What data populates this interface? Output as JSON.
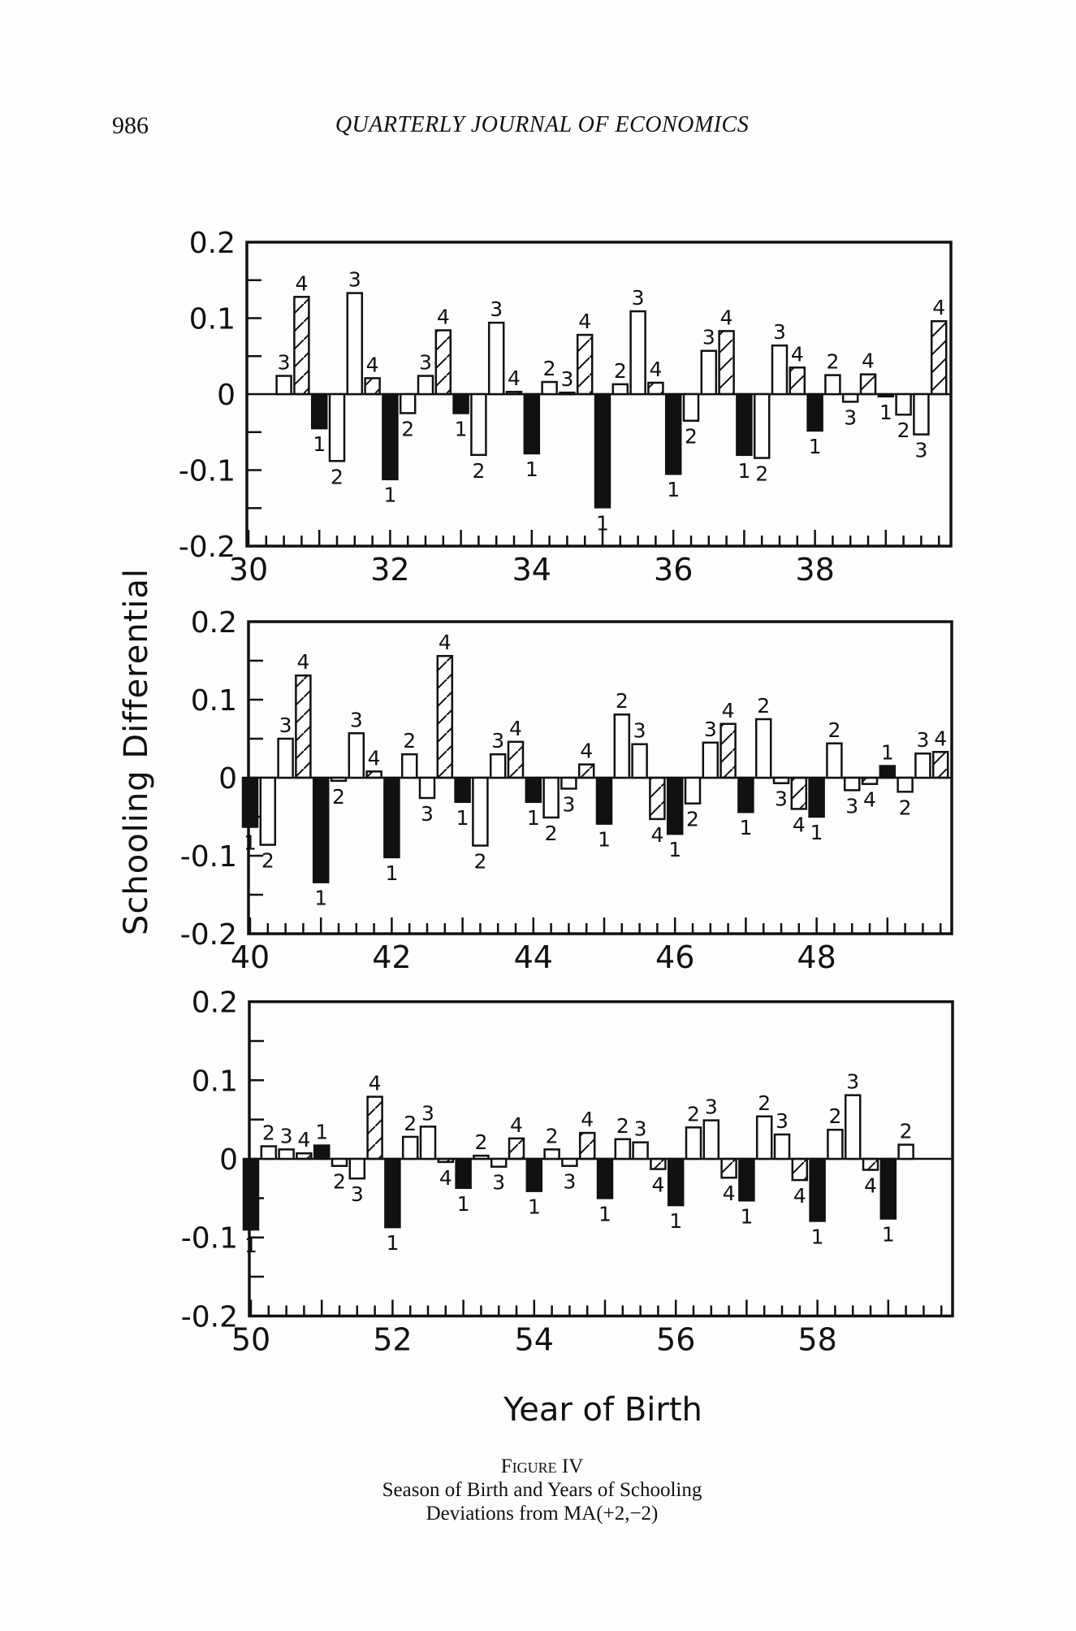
{
  "header": {
    "page_number": "986",
    "journal_title": "QUARTERLY JOURNAL OF ECONOMICS"
  },
  "caption": {
    "figure_label": "Figure IV",
    "line1": "Season of Birth and Years of Schooling",
    "line2": "Deviations from MA(+2,−2)"
  },
  "colors": {
    "ink": "#111111",
    "paper": "#fdfdfb"
  },
  "chart_data": [
    {
      "type": "bar",
      "title": "",
      "xlabel": "Year of Birth",
      "ylabel": "Schooling Differential",
      "ylim": [
        -0.2,
        0.2
      ],
      "xlim": [
        30,
        40
      ],
      "ytick_labels": [
        "0.2",
        "0.1",
        "0",
        "-0.1",
        "-0.2"
      ],
      "ytick_values": [
        0.2,
        0.1,
        0,
        -0.1,
        -0.2
      ],
      "xtick_labels": [
        "30",
        "32",
        "34",
        "36",
        "38"
      ],
      "xtick_values": [
        30,
        32,
        34,
        36,
        38
      ],
      "quarter_labels": [
        "1",
        "2",
        "3",
        "4"
      ],
      "years": [
        30,
        31,
        32,
        33,
        34,
        35,
        36,
        37,
        38,
        39
      ],
      "series": [
        {
          "name": "Quarter 1",
          "style": "solid",
          "values": [
            null,
            -0.045,
            -0.112,
            -0.025,
            -0.078,
            -0.149,
            -0.105,
            -0.08,
            -0.048,
            -0.003
          ]
        },
        {
          "name": "Quarter 2",
          "style": "open",
          "values": [
            null,
            -0.088,
            -0.025,
            -0.08,
            0.016,
            0.013,
            -0.035,
            -0.084,
            0.025,
            -0.027
          ]
        },
        {
          "name": "Quarter 3",
          "style": "open",
          "values": [
            0.024,
            0.133,
            0.024,
            0.094,
            0.002,
            0.109,
            0.057,
            0.064,
            -0.01,
            -0.053
          ]
        },
        {
          "name": "Quarter 4",
          "style": "hatched",
          "values": [
            0.128,
            0.021,
            0.084,
            0.003,
            0.078,
            0.015,
            0.083,
            0.035,
            0.026,
            0.096
          ]
        }
      ]
    },
    {
      "type": "bar",
      "title": "",
      "xlabel": "Year of Birth",
      "ylabel": "Schooling Differential",
      "ylim": [
        -0.2,
        0.2
      ],
      "xlim": [
        40,
        50
      ],
      "ytick_labels": [
        "0.2",
        "0.1",
        "0",
        "-0.1",
        "-0.2"
      ],
      "ytick_values": [
        0.2,
        0.1,
        0,
        -0.1,
        -0.2
      ],
      "xtick_labels": [
        "40",
        "42",
        "44",
        "46",
        "48"
      ],
      "xtick_values": [
        40,
        42,
        44,
        46,
        48
      ],
      "quarter_labels": [
        "1",
        "2",
        "3",
        "4"
      ],
      "years": [
        40,
        41,
        42,
        43,
        44,
        45,
        46,
        47,
        48,
        49
      ],
      "series": [
        {
          "name": "Quarter 1",
          "style": "solid",
          "values": [
            -0.063,
            -0.134,
            -0.102,
            -0.031,
            -0.031,
            -0.059,
            -0.072,
            -0.044,
            -0.05,
            0.015
          ]
        },
        {
          "name": "Quarter 2",
          "style": "open",
          "values": [
            -0.086,
            -0.004,
            0.03,
            -0.087,
            -0.051,
            0.081,
            -0.033,
            0.075,
            0.044,
            -0.018
          ]
        },
        {
          "name": "Quarter 3",
          "style": "open",
          "values": [
            0.05,
            0.057,
            -0.026,
            0.03,
            -0.014,
            0.043,
            0.045,
            -0.007,
            -0.016,
            0.031
          ]
        },
        {
          "name": "Quarter 4",
          "style": "hatched",
          "values": [
            0.131,
            0.008,
            0.156,
            0.046,
            0.017,
            -0.053,
            0.069,
            -0.04,
            -0.008,
            0.033
          ]
        }
      ]
    },
    {
      "type": "bar",
      "title": "",
      "xlabel": "Year of Birth",
      "ylabel": "Schooling Differential",
      "ylim": [
        -0.2,
        0.2
      ],
      "xlim": [
        50,
        60
      ],
      "ytick_labels": [
        "0.2",
        "0.1",
        "0",
        "-0.1",
        "-0.2"
      ],
      "ytick_values": [
        0.2,
        0.1,
        0,
        -0.1,
        -0.2
      ],
      "xtick_labels": [
        "50",
        "52",
        "54",
        "56",
        "58"
      ],
      "xtick_values": [
        50,
        52,
        54,
        56,
        58
      ],
      "quarter_labels": [
        "1",
        "2",
        "3",
        "4"
      ],
      "years": [
        50,
        51,
        52,
        53,
        54,
        55,
        56,
        57,
        58,
        59
      ],
      "series": [
        {
          "name": "Quarter 1",
          "style": "solid",
          "values": [
            -0.09,
            0.017,
            -0.087,
            -0.037,
            -0.041,
            -0.05,
            -0.059,
            -0.053,
            -0.079,
            -0.076
          ]
        },
        {
          "name": "Quarter 2",
          "style": "open",
          "values": [
            0.016,
            -0.009,
            0.028,
            0.004,
            0.012,
            0.025,
            0.04,
            0.054,
            0.037,
            0.018
          ]
        },
        {
          "name": "Quarter 3",
          "style": "open",
          "values": [
            0.012,
            -0.025,
            0.041,
            -0.01,
            -0.009,
            0.021,
            0.049,
            0.031,
            0.081,
            null
          ]
        },
        {
          "name": "Quarter 4",
          "style": "hatched",
          "values": [
            0.007,
            0.079,
            -0.004,
            0.026,
            0.033,
            -0.013,
            -0.024,
            -0.027,
            -0.014,
            null
          ]
        }
      ]
    }
  ]
}
